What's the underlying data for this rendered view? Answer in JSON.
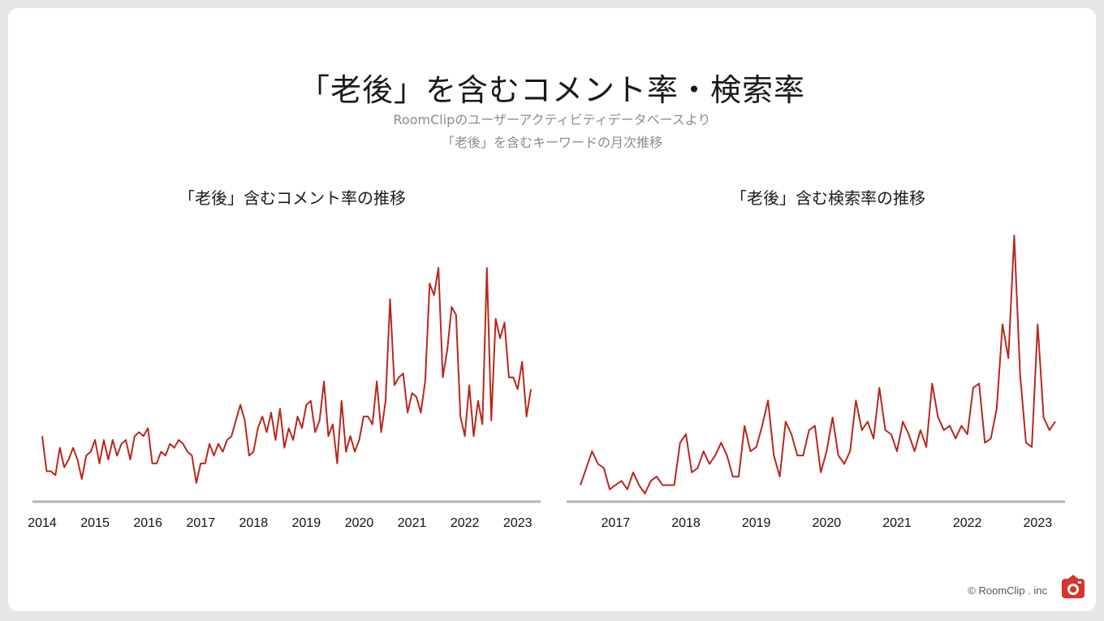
{
  "title": "「老後」を含むコメント率・検索率",
  "subtitle_line1": "RoomClipのユーザーアクティビティデータベースより",
  "subtitle_line2": "「老後」を含むキーワードの月次推移",
  "footer": "© RoomClip . inc",
  "colors": {
    "line": "#b8281e",
    "axis": "#b3b3b3"
  },
  "chart_data": [
    {
      "type": "line",
      "title": "「老後」含むコメント率の推移",
      "xlabel": "",
      "ylabel": "",
      "x_start": "2014-01",
      "x_end": "2023-06",
      "tick_labels": [
        "2014",
        "2015",
        "2016",
        "2017",
        "2018",
        "2019",
        "2020",
        "2021",
        "2022",
        "2023"
      ],
      "grid": false,
      "series": [
        {
          "values": [
            12,
            3,
            3,
            2,
            9,
            4,
            6,
            9,
            6,
            1,
            7,
            8,
            11,
            5,
            11,
            6,
            11,
            7,
            10,
            11,
            6,
            12,
            13,
            12,
            14,
            5,
            5,
            8,
            7,
            10,
            9,
            11,
            10,
            8,
            7,
            0,
            5,
            5,
            10,
            7,
            10,
            8,
            11,
            12,
            16,
            20,
            16,
            7,
            8,
            14,
            17,
            13,
            18,
            11,
            19,
            9,
            14,
            11,
            17,
            14,
            20,
            21,
            13,
            16,
            26,
            12,
            15,
            5,
            21,
            8,
            12,
            8,
            11,
            17,
            17,
            15,
            26,
            13,
            21,
            47,
            25,
            27,
            28,
            18,
            23,
            22,
            18,
            26,
            51,
            48,
            55,
            27,
            34,
            45,
            43,
            17,
            12,
            25,
            12,
            21,
            15,
            55,
            16,
            42,
            37,
            41,
            27,
            27,
            24,
            31,
            17,
            24
          ]
        }
      ]
    },
    {
      "type": "line",
      "title": "「老後」含む検索率の推移",
      "xlabel": "",
      "ylabel": "",
      "x_start": "2016-07",
      "x_end": "2023-06",
      "tick_labels": [
        "2017",
        "2018",
        "2019",
        "2020",
        "2021",
        "2022",
        "2023"
      ],
      "grid": false,
      "series": [
        {
          "values": [
            2,
            6,
            10,
            7,
            6,
            1,
            2,
            3,
            1,
            5,
            2,
            0,
            3,
            4,
            2,
            2,
            2,
            12,
            14,
            5,
            6,
            10,
            7,
            9,
            12,
            9,
            4,
            4,
            16,
            10,
            11,
            16,
            22,
            9,
            4,
            17,
            14,
            9,
            9,
            15,
            16,
            5,
            10,
            18,
            9,
            7,
            10,
            22,
            15,
            17,
            13,
            25,
            15,
            14,
            10,
            17,
            14,
            10,
            15,
            11,
            26,
            18,
            15,
            16,
            13,
            16,
            14,
            25,
            26,
            12,
            13,
            20,
            40,
            32,
            61,
            28,
            12,
            11,
            40,
            18,
            15,
            17
          ]
        }
      ]
    }
  ]
}
